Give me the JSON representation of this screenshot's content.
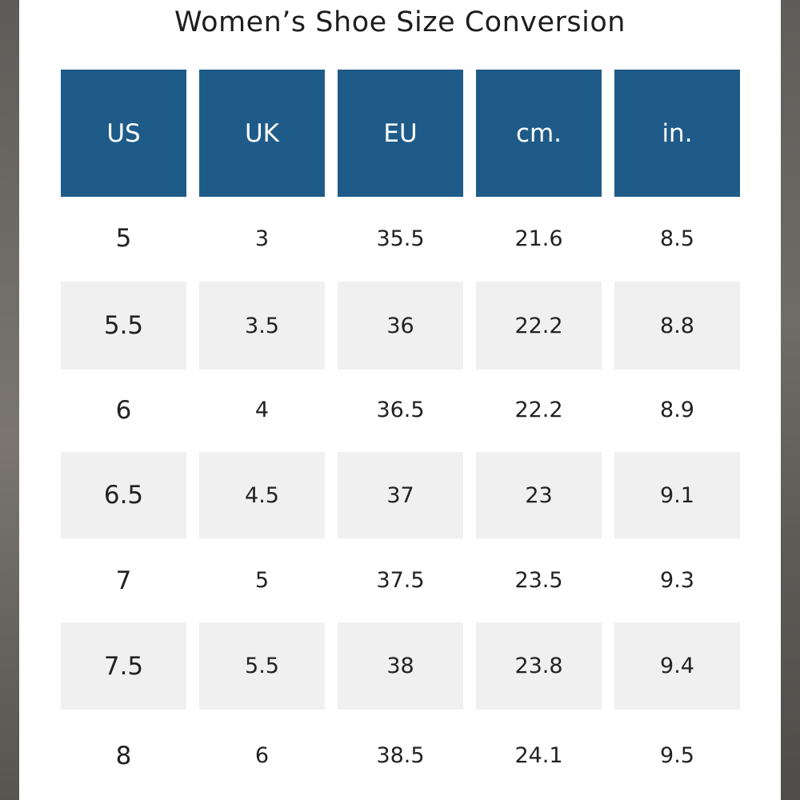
{
  "title": "Women’s Shoe Size Conversion",
  "colors": {
    "header_bg": "#1f5b88",
    "header_text": "#ffffff",
    "row_white": "#ffffff",
    "row_gray": "#f0f0f0",
    "text": "#222222"
  },
  "columns": [
    "US",
    "UK",
    "EU",
    "cm.",
    "in."
  ],
  "rows": [
    [
      "5",
      "3",
      "35.5",
      "21.6",
      "8.5"
    ],
    [
      "5.5",
      "3.5",
      "36",
      "22.2",
      "8.8"
    ],
    [
      "6",
      "4",
      "36.5",
      "22.2",
      "8.9"
    ],
    [
      "6.5",
      "4.5",
      "37",
      "23",
      "9.1"
    ],
    [
      "7",
      "5",
      "37.5",
      "23.5",
      "9.3"
    ],
    [
      "7.5",
      "5.5",
      "38",
      "23.8",
      "9.4"
    ],
    [
      "8",
      "6",
      "38.5",
      "24.1",
      "9.5"
    ]
  ]
}
